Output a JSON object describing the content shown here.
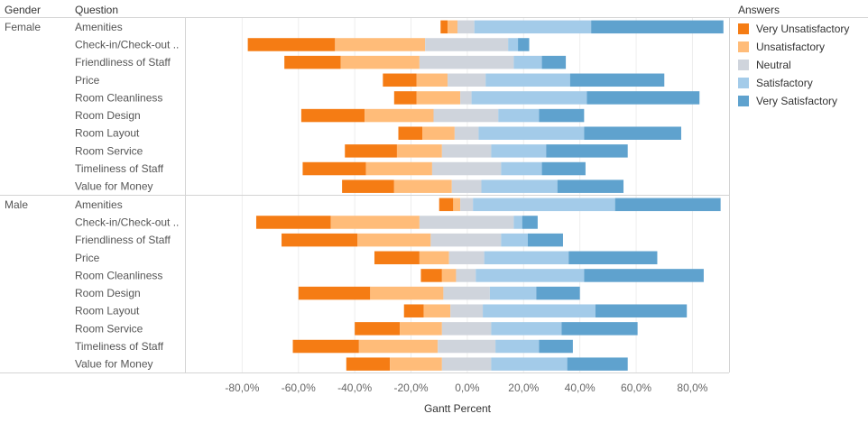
{
  "headers": {
    "gender": "Gender",
    "question": "Question"
  },
  "legend": {
    "title": "Answers",
    "items": [
      {
        "label": "Very Unsatisfactory",
        "color": "#f57c14"
      },
      {
        "label": "Unsatisfactory",
        "color": "#ffbc79"
      },
      {
        "label": "Neutral",
        "color": "#cfd4dc"
      },
      {
        "label": "Satisfactory",
        "color": "#a3cbe9"
      },
      {
        "label": "Very Satisfactory",
        "color": "#5fa2ce"
      }
    ]
  },
  "chart_data": {
    "type": "bar",
    "orientation": "horizontal-stacked-diverging",
    "xlabel": "Gantt Percent",
    "xlim": [
      -100,
      93
    ],
    "xticks": [
      "-80,0%",
      "-60,0%",
      "-40,0%",
      "-20,0%",
      "0,0%",
      "20,0%",
      "40,0%",
      "60,0%",
      "80,0%"
    ],
    "xtick_values": [
      -80,
      -60,
      -40,
      -20,
      0,
      20,
      40,
      60,
      80
    ],
    "categories": [
      "Amenities",
      "Check-in/Check-out ..",
      "Friendliness of Staff",
      "Price",
      "Room Cleanliness",
      "Room Design",
      "Room Layout",
      "Room Service",
      "Timeliness of Staff",
      "Value for Money"
    ],
    "groups": [
      {
        "name": "Female",
        "rows": [
          [
            -9.5,
            -7.0,
            -3.5,
            2.5,
            44.0,
            91.0
          ],
          [
            -78.0,
            -47.0,
            -15.0,
            14.5,
            18.0,
            22.0
          ],
          [
            -65.0,
            -45.0,
            -17.0,
            16.5,
            26.5,
            35.0
          ],
          [
            -30.0,
            -18.0,
            -7.0,
            6.5,
            36.5,
            70.0
          ],
          [
            -26.0,
            -18.0,
            -2.5,
            1.5,
            42.5,
            82.5
          ],
          [
            -59.0,
            -36.5,
            -12.0,
            11.0,
            25.5,
            41.5
          ],
          [
            -24.5,
            -16.0,
            -4.5,
            4.0,
            41.5,
            76.0
          ],
          [
            -43.5,
            -25.0,
            -9.0,
            8.5,
            28.0,
            57.0
          ],
          [
            -58.5,
            -36.0,
            -12.5,
            12.0,
            26.5,
            42.0
          ],
          [
            -44.5,
            -26.0,
            -5.5,
            5.0,
            32.0,
            55.5
          ]
        ]
      },
      {
        "name": "Male",
        "rows": [
          [
            -10.0,
            -5.0,
            -2.5,
            2.0,
            52.5,
            90.0
          ],
          [
            -75.0,
            -48.5,
            -17.0,
            16.5,
            19.5,
            25.0
          ],
          [
            -66.0,
            -39.0,
            -13.0,
            12.0,
            21.5,
            34.0
          ],
          [
            -33.0,
            -17.0,
            -6.5,
            6.0,
            36.0,
            67.5
          ],
          [
            -16.5,
            -9.0,
            -4.0,
            3.0,
            41.5,
            84.0
          ],
          [
            -60.0,
            -34.5,
            -8.5,
            8.0,
            24.5,
            40.0
          ],
          [
            -22.5,
            -15.5,
            -6.0,
            5.5,
            45.5,
            78.0
          ],
          [
            -40.0,
            -24.0,
            -9.0,
            8.5,
            33.5,
            60.5
          ],
          [
            -62.0,
            -38.5,
            -10.5,
            10.0,
            25.5,
            37.5
          ],
          [
            -43.0,
            -27.5,
            -9.0,
            8.5,
            35.5,
            57.0
          ]
        ]
      }
    ],
    "segment_order": [
      "Very Unsatisfactory",
      "Unsatisfactory",
      "Neutral",
      "Satisfactory",
      "Very Satisfactory"
    ],
    "note_boundaries": "each row lists the 6 boundaries (in percent) between which the 5 stacked segments lie",
    "grid": "vertical, light"
  }
}
